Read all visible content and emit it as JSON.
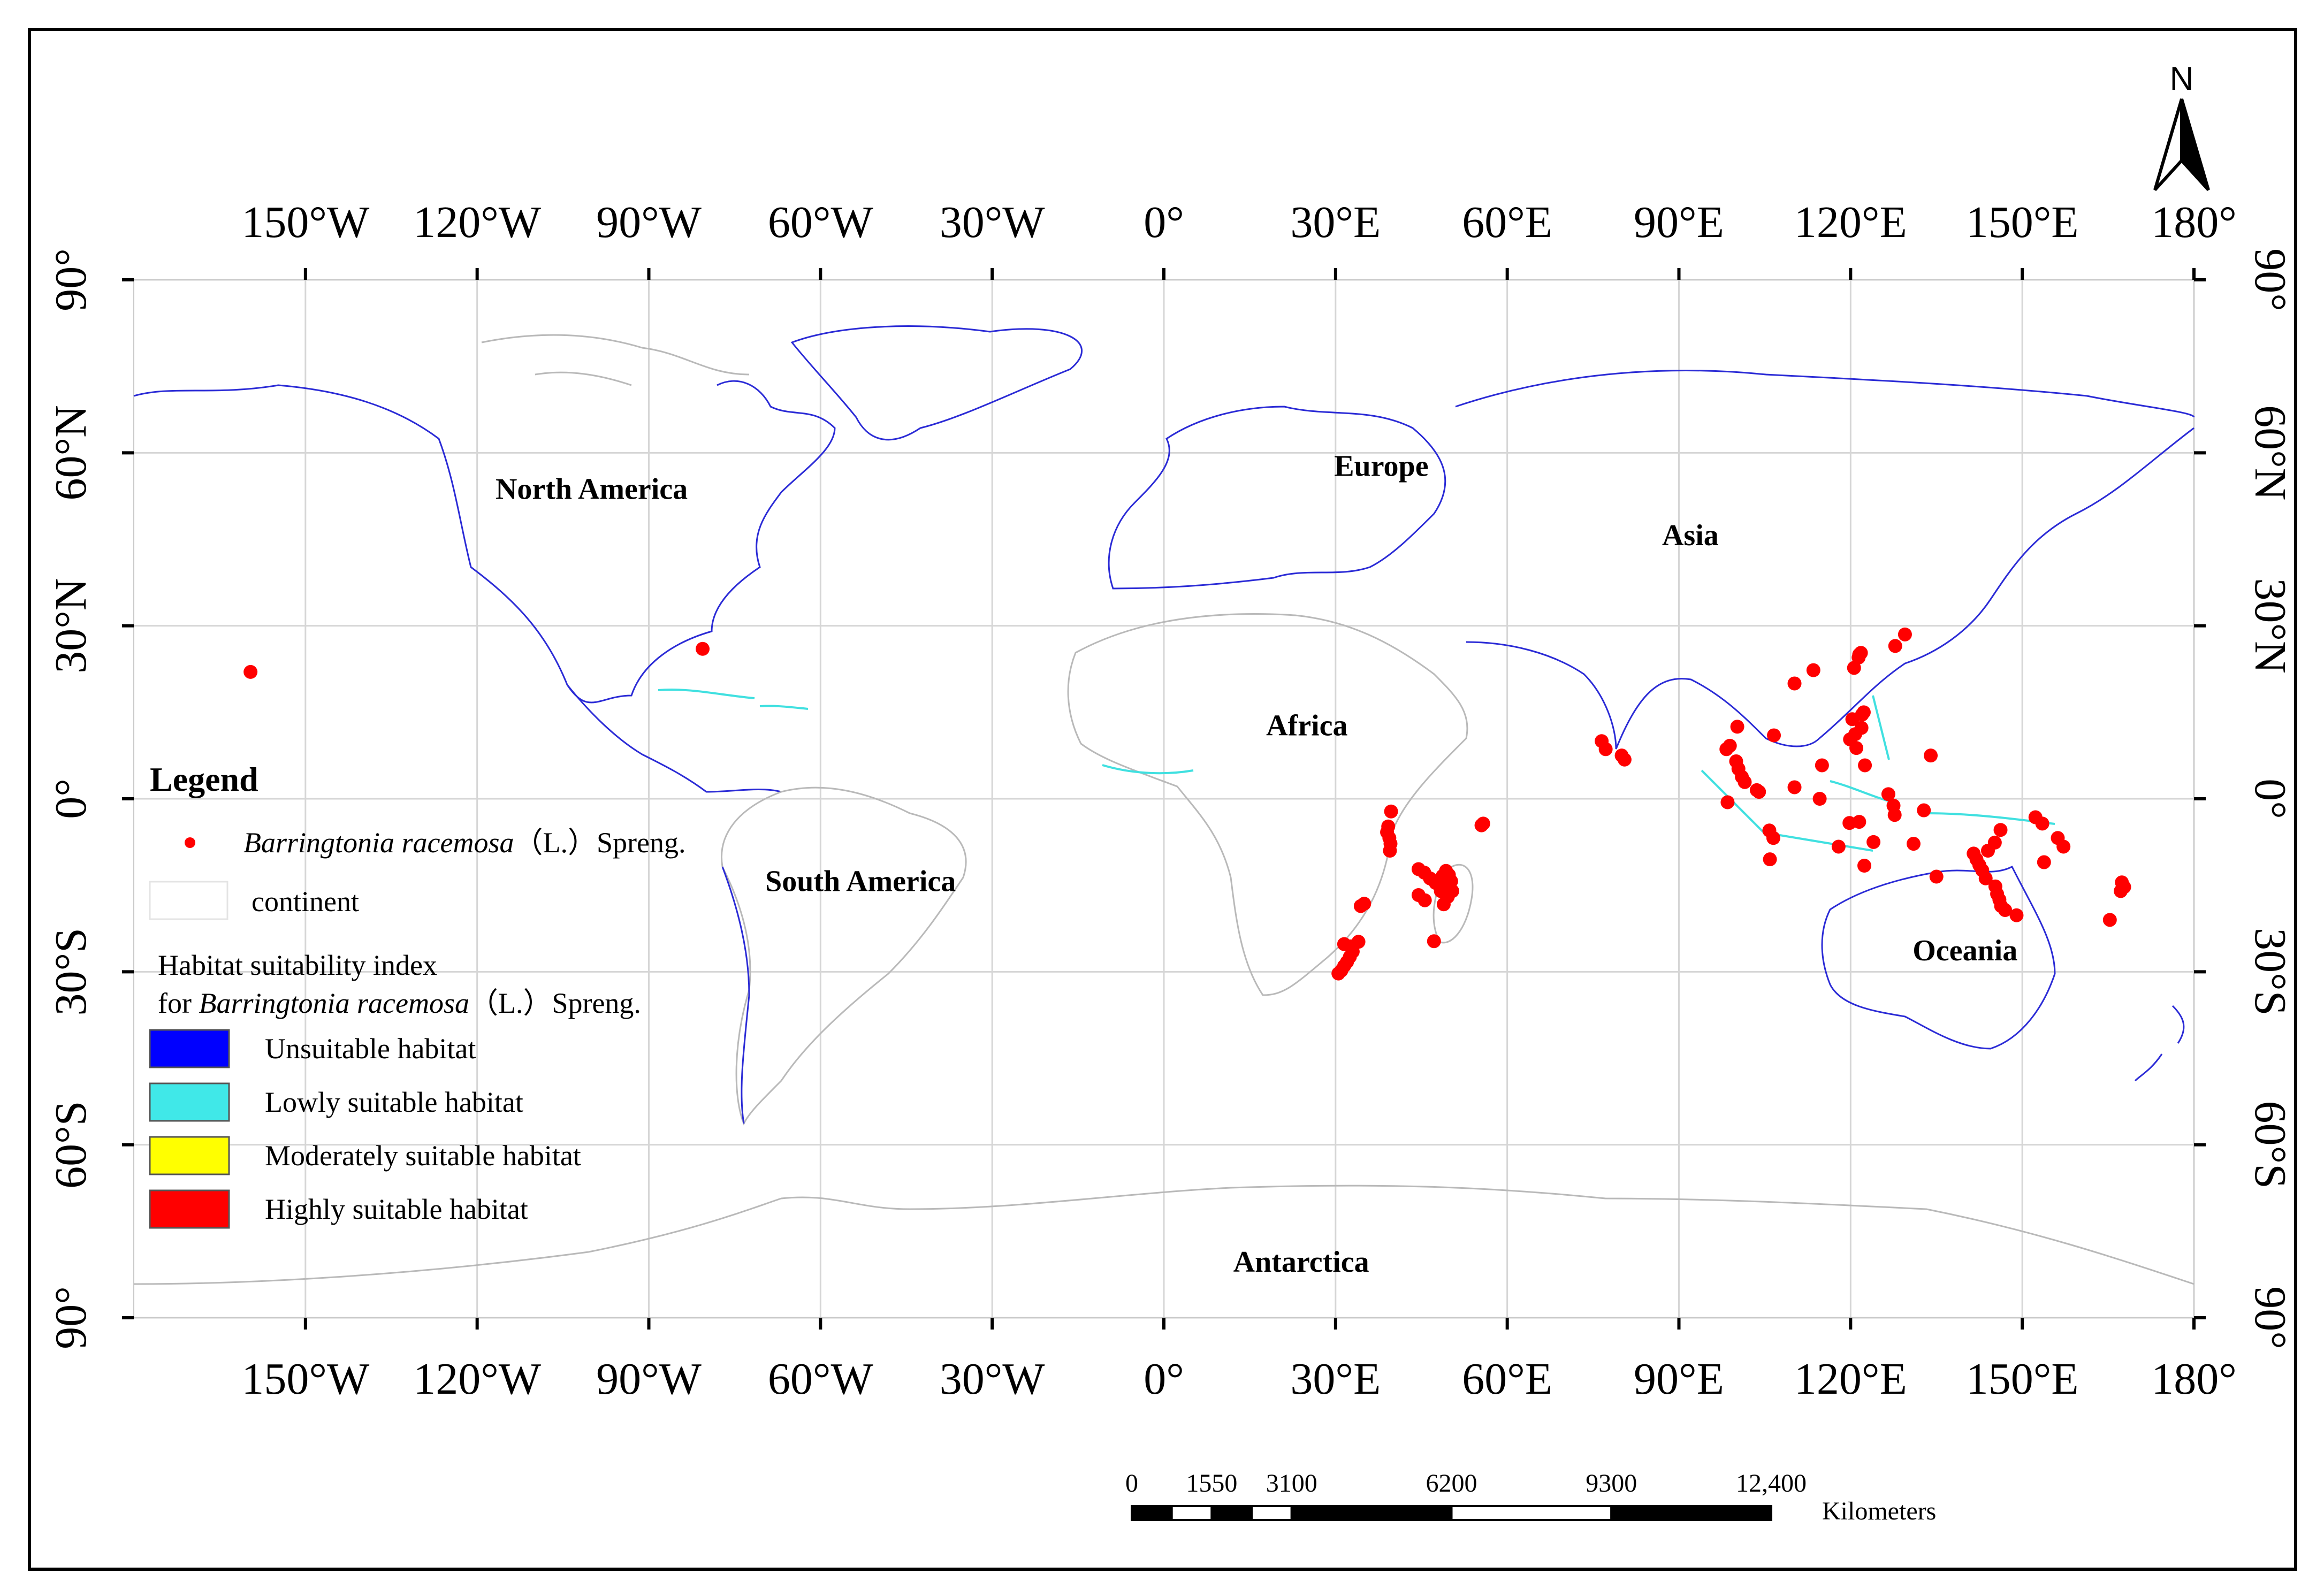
{
  "map": {
    "extent": {
      "lon": [
        -180,
        180
      ],
      "lat": [
        -90,
        90
      ]
    },
    "lon_ticks": [
      {
        "value": -150,
        "label": "150°W"
      },
      {
        "value": -120,
        "label": "120°W"
      },
      {
        "value": -90,
        "label": "90°W"
      },
      {
        "value": -60,
        "label": "60°W"
      },
      {
        "value": -30,
        "label": "30°W"
      },
      {
        "value": 0,
        "label": "0°"
      },
      {
        "value": 30,
        "label": "30°E"
      },
      {
        "value": 60,
        "label": "60°E"
      },
      {
        "value": 90,
        "label": "90°E"
      },
      {
        "value": 120,
        "label": "120°E"
      },
      {
        "value": 150,
        "label": "150°E"
      },
      {
        "value": 180,
        "label": "180°"
      }
    ],
    "lat_ticks": [
      {
        "value": 90,
        "label": "90°"
      },
      {
        "value": 60,
        "label": "60°N"
      },
      {
        "value": 30,
        "label": "30°N"
      },
      {
        "value": 0,
        "label": "0°"
      },
      {
        "value": -30,
        "label": "30°S"
      },
      {
        "value": -60,
        "label": "60°S"
      },
      {
        "value": -90,
        "label": "90°"
      }
    ],
    "continent_labels": [
      {
        "name": "North America",
        "lon": -100,
        "lat": 52
      },
      {
        "name": "Europe",
        "lon": 38,
        "lat": 56
      },
      {
        "name": "Asia",
        "lon": 92,
        "lat": 44
      },
      {
        "name": "Africa",
        "lon": 25,
        "lat": 11
      },
      {
        "name": "South America",
        "lon": -53,
        "lat": -16
      },
      {
        "name": "Oceania",
        "lon": 140,
        "lat": -28
      },
      {
        "name": "Antarctica",
        "lon": 24,
        "lat": -82
      }
    ],
    "occurrences": [
      {
        "lon": -159.6,
        "lat": 22.0
      },
      {
        "lon": -80.6,
        "lat": 26.0
      },
      {
        "lon": 39.7,
        "lat": -2.2
      },
      {
        "lon": 39.2,
        "lat": -4.8
      },
      {
        "lon": 39.0,
        "lat": -5.8
      },
      {
        "lon": 39.4,
        "lat": -6.8
      },
      {
        "lon": 39.6,
        "lat": -7.8
      },
      {
        "lon": 39.5,
        "lat": -9.0
      },
      {
        "lon": 35.0,
        "lat": -18.2
      },
      {
        "lon": 34.4,
        "lat": -18.6
      },
      {
        "lon": 31.5,
        "lat": -25.2
      },
      {
        "lon": 32.7,
        "lat": -25.6
      },
      {
        "lon": 34.0,
        "lat": -24.8
      },
      {
        "lon": 33.0,
        "lat": -26.5
      },
      {
        "lon": 32.5,
        "lat": -27.4
      },
      {
        "lon": 32.0,
        "lat": -28.3
      },
      {
        "lon": 31.5,
        "lat": -29.0
      },
      {
        "lon": 31.0,
        "lat": -29.8
      },
      {
        "lon": 30.5,
        "lat": -30.3
      },
      {
        "lon": 44.5,
        "lat": -12.2
      },
      {
        "lon": 45.5,
        "lat": -12.8
      },
      {
        "lon": 46.5,
        "lat": -13.8
      },
      {
        "lon": 47.5,
        "lat": -14.6
      },
      {
        "lon": 48.7,
        "lat": -13.4
      },
      {
        "lon": 49.3,
        "lat": -12.5
      },
      {
        "lon": 49.8,
        "lat": -13.2
      },
      {
        "lon": 50.2,
        "lat": -14.3
      },
      {
        "lon": 49.6,
        "lat": -15.4
      },
      {
        "lon": 50.4,
        "lat": -16.0
      },
      {
        "lon": 48.4,
        "lat": -16.0
      },
      {
        "lon": 49.6,
        "lat": -17.0
      },
      {
        "lon": 48.9,
        "lat": -18.3
      },
      {
        "lon": 44.5,
        "lat": -16.7
      },
      {
        "lon": 45.6,
        "lat": -17.6
      },
      {
        "lon": 47.2,
        "lat": -24.7
      },
      {
        "lon": 55.5,
        "lat": -4.6
      },
      {
        "lon": 55.8,
        "lat": -4.3
      },
      {
        "lon": 76.5,
        "lat": 10.0
      },
      {
        "lon": 77.2,
        "lat": 8.6
      },
      {
        "lon": 80.5,
        "lat": 6.8
      },
      {
        "lon": 80.0,
        "lat": 7.5
      },
      {
        "lon": 98.3,
        "lat": 8.6
      },
      {
        "lon": 98.9,
        "lat": 9.2
      },
      {
        "lon": 100.0,
        "lat": 6.5
      },
      {
        "lon": 100.4,
        "lat": 5.2
      },
      {
        "lon": 101.0,
        "lat": 3.8
      },
      {
        "lon": 101.5,
        "lat": 2.9
      },
      {
        "lon": 103.6,
        "lat": 1.5
      },
      {
        "lon": 104.0,
        "lat": 1.2
      },
      {
        "lon": 100.2,
        "lat": 12.5
      },
      {
        "lon": 106.6,
        "lat": 11.0
      },
      {
        "lon": 98.5,
        "lat": -0.6
      },
      {
        "lon": 105.8,
        "lat": -5.5
      },
      {
        "lon": 106.5,
        "lat": -6.8
      },
      {
        "lon": 105.9,
        "lat": -10.5
      },
      {
        "lon": 110.2,
        "lat": 2.0
      },
      {
        "lon": 115.0,
        "lat": 5.8
      },
      {
        "lon": 114.6,
        "lat": 0.0
      },
      {
        "lon": 110.2,
        "lat": 20.0
      },
      {
        "lon": 113.5,
        "lat": 22.3
      },
      {
        "lon": 120.6,
        "lat": 22.7
      },
      {
        "lon": 121.5,
        "lat": 25.0
      },
      {
        "lon": 121.8,
        "lat": 25.3
      },
      {
        "lon": 121.4,
        "lat": 24.5
      },
      {
        "lon": 120.3,
        "lat": 13.8
      },
      {
        "lon": 120.8,
        "lat": 11.2
      },
      {
        "lon": 121.9,
        "lat": 12.3
      },
      {
        "lon": 122.0,
        "lat": 14.6
      },
      {
        "lon": 122.3,
        "lat": 15.0
      },
      {
        "lon": 121.0,
        "lat": 8.8
      },
      {
        "lon": 119.9,
        "lat": 10.3
      },
      {
        "lon": 122.5,
        "lat": 5.8
      },
      {
        "lon": 119.8,
        "lat": -4.2
      },
      {
        "lon": 121.5,
        "lat": -4.0
      },
      {
        "lon": 117.9,
        "lat": -8.3
      },
      {
        "lon": 122.4,
        "lat": -11.6
      },
      {
        "lon": 124.0,
        "lat": -7.5
      },
      {
        "lon": 126.6,
        "lat": 0.8
      },
      {
        "lon": 127.5,
        "lat": -1.2
      },
      {
        "lon": 127.7,
        "lat": -2.8
      },
      {
        "lon": 131.0,
        "lat": -7.8
      },
      {
        "lon": 132.8,
        "lat": -2.0
      },
      {
        "lon": 134.0,
        "lat": 7.5
      },
      {
        "lon": 135.0,
        "lat": -13.5
      },
      {
        "lon": 129.5,
        "lat": 28.5
      },
      {
        "lon": 127.8,
        "lat": 26.5
      },
      {
        "lon": 141.5,
        "lat": -9.5
      },
      {
        "lon": 142.0,
        "lat": -10.5
      },
      {
        "lon": 142.5,
        "lat": -11.5
      },
      {
        "lon": 143.0,
        "lat": -12.4
      },
      {
        "lon": 143.6,
        "lat": -13.8
      },
      {
        "lon": 144.0,
        "lat": -9.0
      },
      {
        "lon": 145.2,
        "lat": -7.6
      },
      {
        "lon": 146.2,
        "lat": -5.4
      },
      {
        "lon": 145.3,
        "lat": -15.2
      },
      {
        "lon": 145.6,
        "lat": -16.5
      },
      {
        "lon": 146.0,
        "lat": -17.5
      },
      {
        "lon": 146.3,
        "lat": -18.6
      },
      {
        "lon": 147.0,
        "lat": -19.3
      },
      {
        "lon": 149.0,
        "lat": -20.2
      },
      {
        "lon": 152.3,
        "lat": -3.2
      },
      {
        "lon": 153.5,
        "lat": -4.3
      },
      {
        "lon": 156.2,
        "lat": -6.8
      },
      {
        "lon": 157.2,
        "lat": -8.3
      },
      {
        "lon": 153.8,
        "lat": -11.0
      },
      {
        "lon": 165.3,
        "lat": -21.0
      },
      {
        "lon": 167.4,
        "lat": -14.5
      },
      {
        "lon": 167.8,
        "lat": -15.3
      },
      {
        "lon": 167.2,
        "lat": -16.0
      }
    ]
  },
  "north_arrow": {
    "label": "N"
  },
  "legend": {
    "title": "Legend",
    "species_prefix": "Barringtonia racemosa",
    "species_suffix": "（L.）Spreng.",
    "continent_label": "continent",
    "index_title_line1": "Habitat suitability index",
    "index_title_line2_prefix": "for ",
    "classes": [
      {
        "label": "Unsuitable habitat",
        "color": "#0000ff"
      },
      {
        "label": "Lowly suitable habitat",
        "color": "#40e8e8"
      },
      {
        "label": "Moderately suitable habitat",
        "color": "#ffff00"
      },
      {
        "label": "Highly suitable habitat",
        "color": "#ff0000"
      }
    ]
  },
  "scale_bar": {
    "labels": [
      "0",
      "1550",
      "3100",
      "6200",
      "9300",
      "12,400"
    ],
    "values_km": [
      0,
      1550,
      3100,
      6200,
      9300,
      12400
    ],
    "unit": "Kilometers"
  },
  "colors": {
    "occurrence": "#ff0000",
    "unsuitable": "#0000ff",
    "low": "#40e8e8",
    "grid": "#d6d6d6"
  }
}
